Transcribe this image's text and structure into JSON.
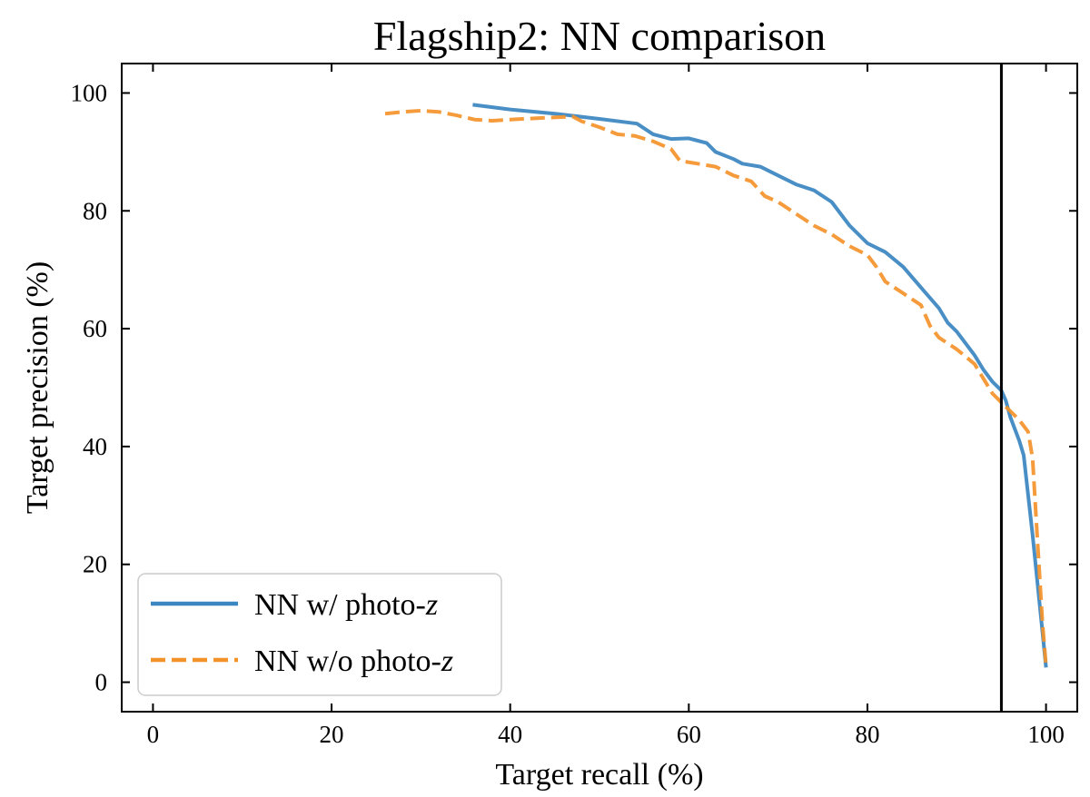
{
  "chart_data": {
    "type": "line",
    "title": "Flagship2: NN comparison",
    "xlabel": "Target recall (%)",
    "ylabel": "Target precision (%)",
    "xlim": [
      -3.5,
      103.5
    ],
    "ylim": [
      -5,
      105
    ],
    "xticks": [
      0,
      20,
      40,
      60,
      80,
      100
    ],
    "yticks": [
      0,
      20,
      40,
      60,
      80,
      100
    ],
    "grid": false,
    "legend_position": "lower-left",
    "vline": {
      "x": 95,
      "color": "#000000"
    },
    "series": [
      {
        "name_prefix": "NN w/ photo-",
        "name_var": "z",
        "color": "#3a86c0",
        "dash": "solid",
        "points": [
          [
            35.8,
            98.0
          ],
          [
            40.0,
            97.2
          ],
          [
            45.0,
            96.5
          ],
          [
            50.0,
            95.6
          ],
          [
            54.2,
            94.8
          ],
          [
            56.0,
            93.0
          ],
          [
            58.0,
            92.2
          ],
          [
            60.0,
            92.3
          ],
          [
            62.0,
            91.5
          ],
          [
            63.0,
            90.0
          ],
          [
            65.0,
            88.8
          ],
          [
            66.0,
            88.0
          ],
          [
            68.0,
            87.5
          ],
          [
            70.0,
            86.0
          ],
          [
            72.0,
            84.5
          ],
          [
            74.0,
            83.5
          ],
          [
            76.0,
            81.5
          ],
          [
            78.0,
            77.5
          ],
          [
            80.0,
            74.5
          ],
          [
            82.0,
            73.0
          ],
          [
            84.0,
            70.5
          ],
          [
            86.0,
            67.0
          ],
          [
            88.0,
            63.5
          ],
          [
            89.0,
            61.0
          ],
          [
            90.0,
            59.5
          ],
          [
            91.0,
            57.5
          ],
          [
            92.0,
            55.5
          ],
          [
            93.0,
            53.0
          ],
          [
            94.0,
            51.0
          ],
          [
            95.0,
            49.5
          ],
          [
            95.5,
            47.8
          ],
          [
            96.0,
            45.0
          ],
          [
            97.0,
            41.0
          ],
          [
            97.5,
            38.5
          ],
          [
            98.5,
            25.0
          ],
          [
            99.5,
            10.0
          ],
          [
            100.0,
            2.5
          ]
        ]
      },
      {
        "name_prefix": "NN w/o photo-",
        "name_var": "z",
        "color": "#f4922a",
        "dash": "dashed",
        "points": [
          [
            26.0,
            96.5
          ],
          [
            28.0,
            96.8
          ],
          [
            30.0,
            97.0
          ],
          [
            32.0,
            96.8
          ],
          [
            34.0,
            96.2
          ],
          [
            36.0,
            95.5
          ],
          [
            38.0,
            95.3
          ],
          [
            40.0,
            95.5
          ],
          [
            44.0,
            95.8
          ],
          [
            47.0,
            96.0
          ],
          [
            48.0,
            95.2
          ],
          [
            50.0,
            94.2
          ],
          [
            52.0,
            93.0
          ],
          [
            54.0,
            92.7
          ],
          [
            56.0,
            91.8
          ],
          [
            58.0,
            90.5
          ],
          [
            59.0,
            88.5
          ],
          [
            61.0,
            88.0
          ],
          [
            63.0,
            87.5
          ],
          [
            65.0,
            86.0
          ],
          [
            67.0,
            85.0
          ],
          [
            68.5,
            82.5
          ],
          [
            70.0,
            81.5
          ],
          [
            72.0,
            79.5
          ],
          [
            74.0,
            77.5
          ],
          [
            76.0,
            76.0
          ],
          [
            78.0,
            74.0
          ],
          [
            80.0,
            72.5
          ],
          [
            81.0,
            70.5
          ],
          [
            82.0,
            68.0
          ],
          [
            84.0,
            66.0
          ],
          [
            86.0,
            64.0
          ],
          [
            87.0,
            60.5
          ],
          [
            88.0,
            58.5
          ],
          [
            90.0,
            56.5
          ],
          [
            92.0,
            54.0
          ],
          [
            93.0,
            51.5
          ],
          [
            94.0,
            49.0
          ],
          [
            95.0,
            47.5
          ],
          [
            96.0,
            46.0
          ],
          [
            97.0,
            44.5
          ],
          [
            98.0,
            42.5
          ],
          [
            98.5,
            38.0
          ],
          [
            99.0,
            25.0
          ],
          [
            99.6,
            10.0
          ],
          [
            100.0,
            2.8
          ]
        ]
      }
    ]
  }
}
